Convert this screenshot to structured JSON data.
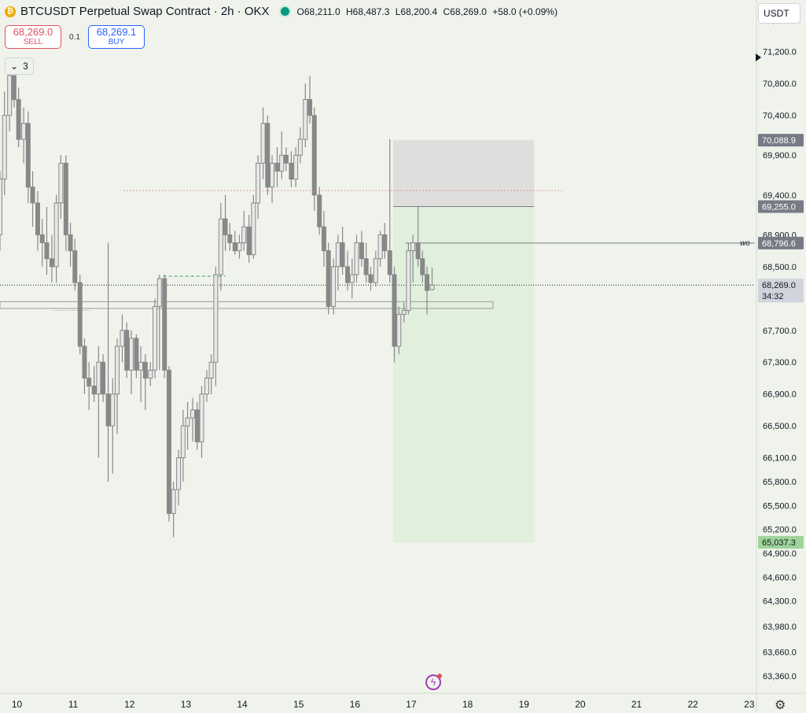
{
  "header": {
    "title": "BTCUSDT Perpetual Swap Contract · 2h · OKX",
    "coin_icon": "bitcoin-icon",
    "ohlc": {
      "open": "O68,211.0",
      "high": "H68,487.3",
      "low": "L68,200.4",
      "close": "C68,269.0",
      "change": "+58.0 (+0.09%)"
    }
  },
  "trade": {
    "sell_price": "68,269.0",
    "sell_label": "SELL",
    "spread": "0.1",
    "buy_price": "68,269.1",
    "buy_label": "BUY"
  },
  "indicators_toggle": {
    "count": "3",
    "icon": "chevron-down-icon"
  },
  "currency": "USDT",
  "annotation_label": "wo",
  "colors": {
    "candle_body": "#888888",
    "candle_hollow": "#e8e8e8",
    "profit_zone": "#dfeedc",
    "stop_zone": "#dcdcdc",
    "dotted_red": "#e04f5f",
    "green_dashed": "#2e9e5a",
    "badge_dark": "#787b86",
    "badge_green": "#9ed49a"
  },
  "chart_data": {
    "type": "candlestick",
    "title": "BTCUSDT Perpetual Swap Contract · 2h · OKX",
    "x_ticks": [
      "10",
      "11",
      "12",
      "13",
      "14",
      "15",
      "16",
      "17",
      "18",
      "19",
      "20",
      "21",
      "22",
      "23"
    ],
    "x_range_days": [
      9.7,
      23.1
    ],
    "y_ticks": [
      "71,600.0",
      "71,200.0",
      "70,800.0",
      "70,400.0",
      "69,900.0",
      "69,400.0",
      "68,900.0",
      "68,500.0",
      "67,700.0",
      "67,300.0",
      "66,900.0",
      "66,500.0",
      "66,100.0",
      "65,800.0",
      "65,500.0",
      "65,200.0",
      "64,900.0",
      "64,600.0",
      "64,300.0",
      "63,980.0",
      "63,660.0",
      "63,360.0"
    ],
    "y_range": [
      63150,
      71850
    ],
    "price_badges": [
      {
        "label": "70,088.9",
        "value": 70088.9,
        "style": "dark"
      },
      {
        "label": "69,255.0",
        "value": 69255.0,
        "style": "dark"
      },
      {
        "label": "68,796.6",
        "value": 68796.6,
        "style": "dark"
      },
      {
        "label": "68,269.0",
        "value": 68269.0,
        "style": "light",
        "countdown": "34:32"
      },
      {
        "label": "65,037.3",
        "value": 65037.3,
        "style": "green"
      }
    ],
    "position": {
      "type": "long",
      "entry": 69255.0,
      "stop": 70088.9,
      "target": 65037.3,
      "start_day": 16.68,
      "end_day": 19.18
    },
    "horizontal_lines": [
      {
        "value": 69455,
        "style": "dotted-red",
        "from_day": 11.9,
        "to_day": 19.7
      },
      {
        "value": 68796.6,
        "style": "solid",
        "from_day": 16.9,
        "to_day": 23.1,
        "label": "wo"
      },
      {
        "value": 68269.0,
        "style": "dotted-current",
        "from_day": 9.7,
        "to_day": 23.1
      },
      {
        "value": 68380,
        "style": "dashed-green",
        "from_day": 12.6,
        "to_day": 13.7
      }
    ],
    "zone": {
      "top": 68060,
      "bottom": 67975,
      "from_day": 9.7,
      "to_day": 18.45
    },
    "low_marker": {
      "value": 67950,
      "from_day": 10.65,
      "to_day": 11.3
    },
    "candles": [
      {
        "t": 9.7,
        "o": 68900,
        "h": 69700,
        "l": 68700,
        "c": 69600
      },
      {
        "t": 9.78,
        "o": 69600,
        "h": 70700,
        "l": 69400,
        "c": 70400
      },
      {
        "t": 9.87,
        "o": 70400,
        "h": 71050,
        "l": 70200,
        "c": 70900
      },
      {
        "t": 9.95,
        "o": 70900,
        "h": 71100,
        "l": 70500,
        "c": 70600
      },
      {
        "t": 10.03,
        "o": 70600,
        "h": 70750,
        "l": 70000,
        "c": 70100
      },
      {
        "t": 10.12,
        "o": 70100,
        "h": 70500,
        "l": 69800,
        "c": 70300
      },
      {
        "t": 10.2,
        "o": 70300,
        "h": 70450,
        "l": 69300,
        "c": 69500
      },
      {
        "t": 10.28,
        "o": 69500,
        "h": 69700,
        "l": 69000,
        "c": 69300
      },
      {
        "t": 10.37,
        "o": 69300,
        "h": 69450,
        "l": 68700,
        "c": 68900
      },
      {
        "t": 10.45,
        "o": 68900,
        "h": 69100,
        "l": 68500,
        "c": 68800
      },
      {
        "t": 10.53,
        "o": 68800,
        "h": 69250,
        "l": 68400,
        "c": 68600
      },
      {
        "t": 10.62,
        "o": 68600,
        "h": 68900,
        "l": 68300,
        "c": 68500
      },
      {
        "t": 10.7,
        "o": 68500,
        "h": 69400,
        "l": 68300,
        "c": 69300
      },
      {
        "t": 10.78,
        "o": 69300,
        "h": 69900,
        "l": 69100,
        "c": 69800
      },
      {
        "t": 10.87,
        "o": 69800,
        "h": 69900,
        "l": 68700,
        "c": 68900
      },
      {
        "t": 10.95,
        "o": 68900,
        "h": 69050,
        "l": 68500,
        "c": 68700
      },
      {
        "t": 11.03,
        "o": 68700,
        "h": 68850,
        "l": 68200,
        "c": 68300
      },
      {
        "t": 11.12,
        "o": 68300,
        "h": 68400,
        "l": 67400,
        "c": 67500
      },
      {
        "t": 11.2,
        "o": 67500,
        "h": 67600,
        "l": 66900,
        "c": 67100
      },
      {
        "t": 11.28,
        "o": 67100,
        "h": 67300,
        "l": 66700,
        "c": 67000
      },
      {
        "t": 11.37,
        "o": 67000,
        "h": 67250,
        "l": 66800,
        "c": 66900
      },
      {
        "t": 11.45,
        "o": 66900,
        "h": 67500,
        "l": 66100,
        "c": 67300
      },
      {
        "t": 11.53,
        "o": 67300,
        "h": 67400,
        "l": 66800,
        "c": 66900
      },
      {
        "t": 11.62,
        "o": 66900,
        "h": 68800,
        "l": 65800,
        "c": 66500
      },
      {
        "t": 11.7,
        "o": 66500,
        "h": 67100,
        "l": 65900,
        "c": 66900
      },
      {
        "t": 11.78,
        "o": 66900,
        "h": 67600,
        "l": 66400,
        "c": 67500
      },
      {
        "t": 11.87,
        "o": 67500,
        "h": 67900,
        "l": 67300,
        "c": 67700
      },
      {
        "t": 11.95,
        "o": 67700,
        "h": 67800,
        "l": 67100,
        "c": 67200
      },
      {
        "t": 12.03,
        "o": 67200,
        "h": 67700,
        "l": 66900,
        "c": 67600
      },
      {
        "t": 12.12,
        "o": 67600,
        "h": 67650,
        "l": 67100,
        "c": 67200
      },
      {
        "t": 12.2,
        "o": 67200,
        "h": 67500,
        "l": 66800,
        "c": 67300
      },
      {
        "t": 12.28,
        "o": 67300,
        "h": 67400,
        "l": 66700,
        "c": 67100
      },
      {
        "t": 12.37,
        "o": 67100,
        "h": 67300,
        "l": 67000,
        "c": 67200
      },
      {
        "t": 12.45,
        "o": 67200,
        "h": 68100,
        "l": 67100,
        "c": 68000
      },
      {
        "t": 12.53,
        "o": 68000,
        "h": 68400,
        "l": 67200,
        "c": 68350
      },
      {
        "t": 12.62,
        "o": 68350,
        "h": 68400,
        "l": 67100,
        "c": 67200
      },
      {
        "t": 12.7,
        "o": 67200,
        "h": 67250,
        "l": 65300,
        "c": 65400
      },
      {
        "t": 12.78,
        "o": 65400,
        "h": 65800,
        "l": 65100,
        "c": 65700
      },
      {
        "t": 12.87,
        "o": 65700,
        "h": 66200,
        "l": 65500,
        "c": 66100
      },
      {
        "t": 12.95,
        "o": 66100,
        "h": 66700,
        "l": 65800,
        "c": 66500
      },
      {
        "t": 13.03,
        "o": 66500,
        "h": 66800,
        "l": 66200,
        "c": 66600
      },
      {
        "t": 13.12,
        "o": 66600,
        "h": 66850,
        "l": 66300,
        "c": 66700
      },
      {
        "t": 13.2,
        "o": 66700,
        "h": 66800,
        "l": 66200,
        "c": 66300
      },
      {
        "t": 13.28,
        "o": 66300,
        "h": 67000,
        "l": 66100,
        "c": 66900
      },
      {
        "t": 13.37,
        "o": 66900,
        "h": 67200,
        "l": 66800,
        "c": 67100
      },
      {
        "t": 13.45,
        "o": 67100,
        "h": 67400,
        "l": 66900,
        "c": 67300
      },
      {
        "t": 13.53,
        "o": 67300,
        "h": 68500,
        "l": 67000,
        "c": 68400
      },
      {
        "t": 13.62,
        "o": 68400,
        "h": 69300,
        "l": 68200,
        "c": 69100
      },
      {
        "t": 13.7,
        "o": 69100,
        "h": 69400,
        "l": 68700,
        "c": 68900
      },
      {
        "t": 13.78,
        "o": 68900,
        "h": 69050,
        "l": 68700,
        "c": 68800
      },
      {
        "t": 13.87,
        "o": 68800,
        "h": 68950,
        "l": 68650,
        "c": 68700
      },
      {
        "t": 13.95,
        "o": 68700,
        "h": 68900,
        "l": 68600,
        "c": 68800
      },
      {
        "t": 14.03,
        "o": 68800,
        "h": 69200,
        "l": 68700,
        "c": 69000
      },
      {
        "t": 14.12,
        "o": 69000,
        "h": 69150,
        "l": 68550,
        "c": 68650
      },
      {
        "t": 14.2,
        "o": 68650,
        "h": 69400,
        "l": 68600,
        "c": 69300
      },
      {
        "t": 14.28,
        "o": 69300,
        "h": 69900,
        "l": 69100,
        "c": 69800
      },
      {
        "t": 14.37,
        "o": 69800,
        "h": 70500,
        "l": 69600,
        "c": 70300
      },
      {
        "t": 14.45,
        "o": 70300,
        "h": 70400,
        "l": 69400,
        "c": 69500
      },
      {
        "t": 14.53,
        "o": 69500,
        "h": 69900,
        "l": 69300,
        "c": 69800
      },
      {
        "t": 14.62,
        "o": 69800,
        "h": 70000,
        "l": 69500,
        "c": 69700
      },
      {
        "t": 14.7,
        "o": 69700,
        "h": 70200,
        "l": 69600,
        "c": 69900
      },
      {
        "t": 14.78,
        "o": 69900,
        "h": 70000,
        "l": 69700,
        "c": 69800
      },
      {
        "t": 14.87,
        "o": 69800,
        "h": 69950,
        "l": 69500,
        "c": 69600
      },
      {
        "t": 14.95,
        "o": 69600,
        "h": 70000,
        "l": 69500,
        "c": 69900
      },
      {
        "t": 15.03,
        "o": 69900,
        "h": 70250,
        "l": 69800,
        "c": 70100
      },
      {
        "t": 15.12,
        "o": 70100,
        "h": 70800,
        "l": 70000,
        "c": 70600
      },
      {
        "t": 15.2,
        "o": 70600,
        "h": 70900,
        "l": 70300,
        "c": 70400
      },
      {
        "t": 15.28,
        "o": 70400,
        "h": 70500,
        "l": 69200,
        "c": 69400
      },
      {
        "t": 15.37,
        "o": 69400,
        "h": 69500,
        "l": 68900,
        "c": 69000
      },
      {
        "t": 15.45,
        "o": 69000,
        "h": 69200,
        "l": 68500,
        "c": 68700
      },
      {
        "t": 15.53,
        "o": 68700,
        "h": 68800,
        "l": 67900,
        "c": 68000
      },
      {
        "t": 15.62,
        "o": 68000,
        "h": 68600,
        "l": 67900,
        "c": 68500
      },
      {
        "t": 15.7,
        "o": 68500,
        "h": 68900,
        "l": 68200,
        "c": 68800
      },
      {
        "t": 15.78,
        "o": 68800,
        "h": 69000,
        "l": 68400,
        "c": 68500
      },
      {
        "t": 15.87,
        "o": 68500,
        "h": 68700,
        "l": 68200,
        "c": 68300
      },
      {
        "t": 15.95,
        "o": 68300,
        "h": 68600,
        "l": 68100,
        "c": 68400
      },
      {
        "t": 16.03,
        "o": 68400,
        "h": 68900,
        "l": 68300,
        "c": 68800
      },
      {
        "t": 16.12,
        "o": 68800,
        "h": 68950,
        "l": 68500,
        "c": 68600
      },
      {
        "t": 16.2,
        "o": 68600,
        "h": 68800,
        "l": 68300,
        "c": 68400
      },
      {
        "t": 16.28,
        "o": 68400,
        "h": 68500,
        "l": 68200,
        "c": 68300
      },
      {
        "t": 16.37,
        "o": 68300,
        "h": 68700,
        "l": 68250,
        "c": 68600
      },
      {
        "t": 16.45,
        "o": 68600,
        "h": 68950,
        "l": 68500,
        "c": 68900
      },
      {
        "t": 16.53,
        "o": 68900,
        "h": 69050,
        "l": 68600,
        "c": 68700
      },
      {
        "t": 16.62,
        "o": 68700,
        "h": 70100,
        "l": 68300,
        "c": 68400
      },
      {
        "t": 16.7,
        "o": 68400,
        "h": 68500,
        "l": 67300,
        "c": 67500
      },
      {
        "t": 16.78,
        "o": 67500,
        "h": 68000,
        "l": 67400,
        "c": 67900
      },
      {
        "t": 16.87,
        "o": 67900,
        "h": 68050,
        "l": 67800,
        "c": 67950
      },
      {
        "t": 16.95,
        "o": 67950,
        "h": 68800,
        "l": 67900,
        "c": 68700
      },
      {
        "t": 17.03,
        "o": 68700,
        "h": 68900,
        "l": 68300,
        "c": 68800
      },
      {
        "t": 17.12,
        "o": 68800,
        "h": 69250,
        "l": 68500,
        "c": 68600
      },
      {
        "t": 17.2,
        "o": 68600,
        "h": 68700,
        "l": 68300,
        "c": 68400
      },
      {
        "t": 17.28,
        "o": 68400,
        "h": 68500,
        "l": 67900,
        "c": 68200
      },
      {
        "t": 17.37,
        "o": 68211,
        "h": 68487.3,
        "l": 68200.4,
        "c": 68269
      }
    ]
  }
}
